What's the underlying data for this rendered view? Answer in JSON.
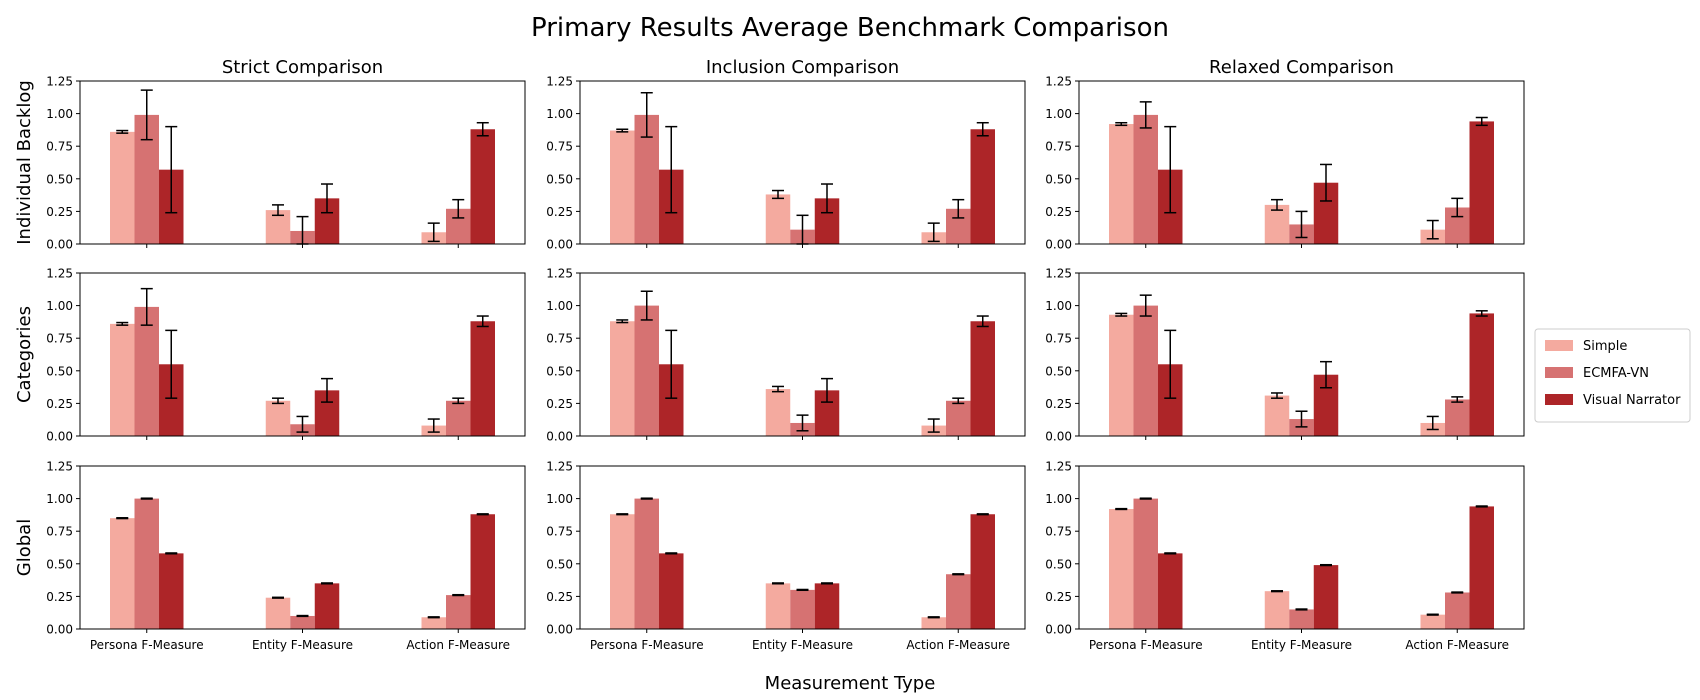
{
  "figure": {
    "title": "Primary Results Average Benchmark Comparison",
    "xlabel": "Measurement Type"
  },
  "columns": [
    "Strict Comparison",
    "Inclusion Comparison",
    "Relaxed Comparison"
  ],
  "rows": [
    "Individual Backlog",
    "Categories",
    "Global"
  ],
  "legend": {
    "placement": "right",
    "entries": [
      {
        "name": "Simple",
        "color": "#f4aa9f"
      },
      {
        "name": "ECMFA-VN",
        "color": "#d67272"
      },
      {
        "name": "Visual Narrator",
        "color": "#ad2528"
      }
    ]
  },
  "chart_data": {
    "type": "bar",
    "categories": [
      "Persona F-Measure",
      "Entity F-Measure",
      "Action F-Measure"
    ],
    "ylim": [
      0,
      1.25
    ],
    "yticks": [
      "0.00",
      "0.25",
      "0.50",
      "0.75",
      "1.00",
      "1.25"
    ],
    "panels": [
      {
        "row": "Individual Backlog",
        "column": "Strict Comparison",
        "series": [
          {
            "values": [
              0.86,
              0.26,
              0.09
            ],
            "errors": [
              0.01,
              0.04,
              0.07
            ]
          },
          {
            "values": [
              0.99,
              0.1,
              0.27
            ],
            "errors": [
              0.19,
              0.11,
              0.07
            ]
          },
          {
            "values": [
              0.57,
              0.35,
              0.88
            ],
            "errors": [
              0.33,
              0.11,
              0.05
            ]
          }
        ]
      },
      {
        "row": "Individual Backlog",
        "column": "Inclusion Comparison",
        "series": [
          {
            "values": [
              0.87,
              0.38,
              0.09
            ],
            "errors": [
              0.01,
              0.03,
              0.07
            ]
          },
          {
            "values": [
              0.99,
              0.11,
              0.27
            ],
            "errors": [
              0.17,
              0.11,
              0.07
            ]
          },
          {
            "values": [
              0.57,
              0.35,
              0.88
            ],
            "errors": [
              0.33,
              0.11,
              0.05
            ]
          }
        ]
      },
      {
        "row": "Individual Backlog",
        "column": "Relaxed Comparison",
        "series": [
          {
            "values": [
              0.92,
              0.3,
              0.11
            ],
            "errors": [
              0.01,
              0.04,
              0.07
            ]
          },
          {
            "values": [
              0.99,
              0.15,
              0.28
            ],
            "errors": [
              0.1,
              0.1,
              0.07
            ]
          },
          {
            "values": [
              0.57,
              0.47,
              0.94
            ],
            "errors": [
              0.33,
              0.14,
              0.03
            ]
          }
        ]
      },
      {
        "row": "Categories",
        "column": "Strict Comparison",
        "series": [
          {
            "values": [
              0.86,
              0.27,
              0.08
            ],
            "errors": [
              0.01,
              0.02,
              0.05
            ]
          },
          {
            "values": [
              0.99,
              0.09,
              0.27
            ],
            "errors": [
              0.14,
              0.06,
              0.02
            ]
          },
          {
            "values": [
              0.55,
              0.35,
              0.88
            ],
            "errors": [
              0.26,
              0.09,
              0.04
            ]
          }
        ]
      },
      {
        "row": "Categories",
        "column": "Inclusion Comparison",
        "series": [
          {
            "values": [
              0.88,
              0.36,
              0.08
            ],
            "errors": [
              0.01,
              0.02,
              0.05
            ]
          },
          {
            "values": [
              1.0,
              0.1,
              0.27
            ],
            "errors": [
              0.11,
              0.06,
              0.02
            ]
          },
          {
            "values": [
              0.55,
              0.35,
              0.88
            ],
            "errors": [
              0.26,
              0.09,
              0.04
            ]
          }
        ]
      },
      {
        "row": "Categories",
        "column": "Relaxed Comparison",
        "series": [
          {
            "values": [
              0.93,
              0.31,
              0.1
            ],
            "errors": [
              0.01,
              0.02,
              0.05
            ]
          },
          {
            "values": [
              1.0,
              0.13,
              0.28
            ],
            "errors": [
              0.08,
              0.06,
              0.02
            ]
          },
          {
            "values": [
              0.55,
              0.47,
              0.94
            ],
            "errors": [
              0.26,
              0.1,
              0.02
            ]
          }
        ]
      },
      {
        "row": "Global",
        "column": "Strict Comparison",
        "series": [
          {
            "values": [
              0.85,
              0.24,
              0.09
            ],
            "errors": [
              0.003,
              0.003,
              0.003
            ]
          },
          {
            "values": [
              1.0,
              0.1,
              0.26
            ],
            "errors": [
              0.003,
              0.003,
              0.003
            ]
          },
          {
            "values": [
              0.58,
              0.35,
              0.88
            ],
            "errors": [
              0.003,
              0.003,
              0.003
            ]
          }
        ]
      },
      {
        "row": "Global",
        "column": "Inclusion Comparison",
        "series": [
          {
            "values": [
              0.88,
              0.35,
              0.09
            ],
            "errors": [
              0.003,
              0.003,
              0.003
            ]
          },
          {
            "values": [
              1.0,
              0.3,
              0.42
            ],
            "errors": [
              0.003,
              0.003,
              0.003
            ]
          },
          {
            "values": [
              0.58,
              0.35,
              0.88
            ],
            "errors": [
              0.003,
              0.003,
              0.003
            ]
          }
        ]
      },
      {
        "row": "Global",
        "column": "Relaxed Comparison",
        "series": [
          {
            "values": [
              0.92,
              0.29,
              0.11
            ],
            "errors": [
              0.003,
              0.003,
              0.003
            ]
          },
          {
            "values": [
              1.0,
              0.15,
              0.28
            ],
            "errors": [
              0.003,
              0.003,
              0.003
            ]
          },
          {
            "values": [
              0.58,
              0.49,
              0.94
            ],
            "errors": [
              0.003,
              0.003,
              0.003
            ]
          }
        ]
      }
    ]
  }
}
